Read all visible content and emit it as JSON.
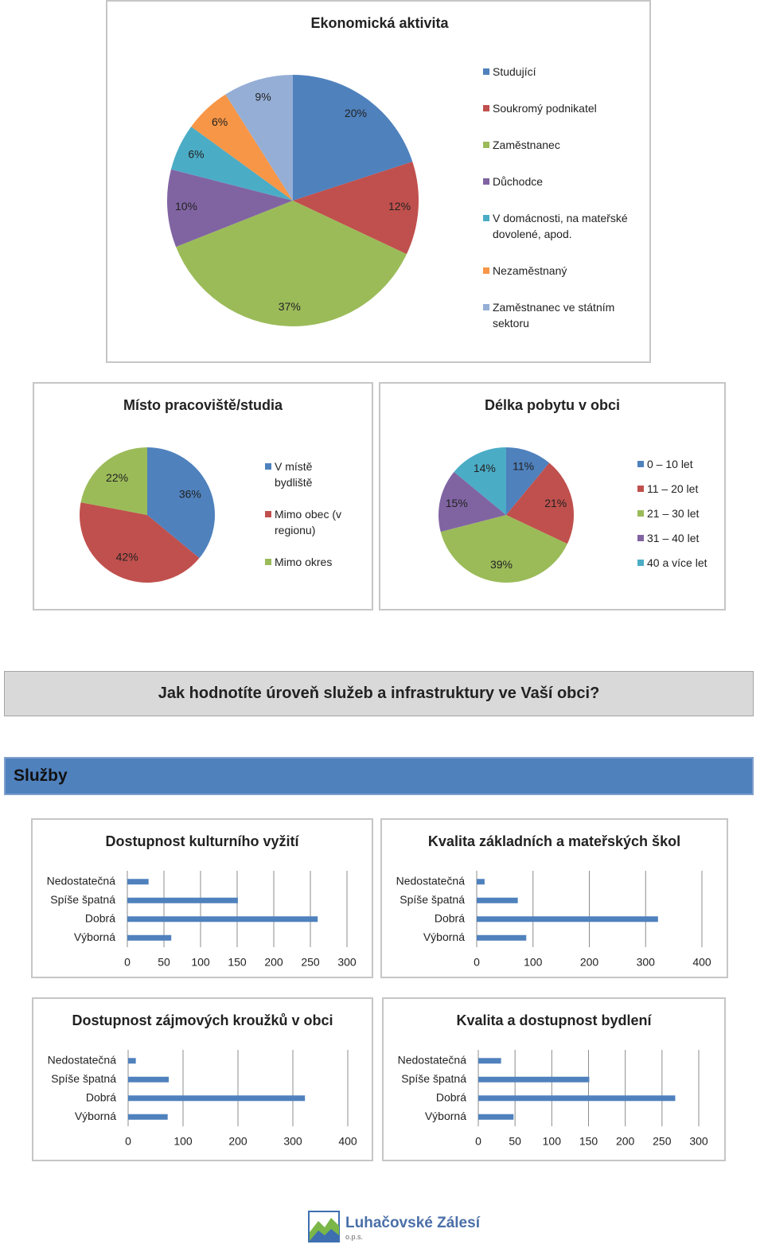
{
  "chart_data": [
    {
      "type": "pie",
      "title": "Ekonomická aktivita",
      "categories": [
        "Studující",
        "Soukromý podnikatel",
        "Zaměstnanec",
        "Důchodce",
        "V domácnosti, na mateřské dovolené, apod.",
        "Nezaměstnaný",
        "Zaměstnanec ve státním sektoru"
      ],
      "values": [
        20,
        12,
        37,
        10,
        6,
        6,
        9
      ],
      "value_labels": [
        "20%",
        "12%",
        "37%",
        "10%",
        "6%",
        "6%",
        "9%"
      ],
      "colors": [
        "#4f81bd",
        "#c0504d",
        "#9bbb59",
        "#8064a2",
        "#4bacc6",
        "#f79646",
        "#95aed6"
      ]
    },
    {
      "type": "pie",
      "title": "Místo pracoviště/studia",
      "categories": [
        "V místě bydliště",
        "Mimo obec (v regionu)",
        "Mimo okres"
      ],
      "values": [
        36,
        42,
        22
      ],
      "value_labels": [
        "36%",
        "42%",
        "22%"
      ],
      "colors": [
        "#4f81bd",
        "#c0504d",
        "#9bbb59"
      ]
    },
    {
      "type": "pie",
      "title": "Délka pobytu v obci",
      "categories": [
        "0 – 10 let",
        "11 – 20 let",
        "21 – 30 let",
        "31 – 40 let",
        "40 a více let"
      ],
      "values": [
        11,
        21,
        39,
        15,
        14
      ],
      "value_labels": [
        "11%",
        "21%",
        "39%",
        "15%",
        "14%"
      ],
      "colors": [
        "#4f81bd",
        "#c0504d",
        "#9bbb59",
        "#8064a2",
        "#4bacc6"
      ]
    },
    {
      "type": "bar",
      "horizontal": true,
      "title": "Dostupnost kulturního vyžití",
      "categories": [
        "Nedostatečná",
        "Spíše špatná",
        "Dobrá",
        "Výborná"
      ],
      "values": [
        29,
        151,
        260,
        60
      ],
      "color": "#4f81bd",
      "xlim": [
        0,
        300
      ],
      "xticks": [
        0,
        50,
        100,
        150,
        200,
        250,
        300
      ],
      "grid": true
    },
    {
      "type": "bar",
      "horizontal": true,
      "title": "Kvalita základních a mateřských škol",
      "categories": [
        "Nedostatečná",
        "Spíše špatná",
        "Dobrá",
        "Výborná"
      ],
      "values": [
        14,
        73,
        322,
        88
      ],
      "color": "#4f81bd",
      "xlim": [
        0,
        400
      ],
      "xticks": [
        0,
        100,
        200,
        300,
        400
      ],
      "grid": true
    },
    {
      "type": "bar",
      "horizontal": true,
      "title": "Dostupnost zájmových kroužků v obci",
      "categories": [
        "Nedostatečná",
        "Spíše špatná",
        "Dobrá",
        "Výborná"
      ],
      "values": [
        14,
        74,
        322,
        72
      ],
      "color": "#4f81bd",
      "xlim": [
        0,
        400
      ],
      "xticks": [
        0,
        100,
        200,
        300,
        400
      ],
      "grid": true
    },
    {
      "type": "bar",
      "horizontal": true,
      "title": "Kvalita a dostupnost bydlení",
      "categories": [
        "Nedostatečná",
        "Spíše špatná",
        "Dobrá",
        "Výborná"
      ],
      "values": [
        31,
        151,
        268,
        48
      ],
      "color": "#4f81bd",
      "xlim": [
        0,
        300
      ],
      "xticks": [
        0,
        50,
        100,
        150,
        200,
        250,
        300
      ],
      "grid": true
    }
  ],
  "question": "Jak hodnotíte úroveň služeb a infrastruktury ve Vaší obci?",
  "section": "Služby",
  "logo": {
    "name": "Luhačovské Zálesí",
    "subtitle": "o.p.s."
  }
}
